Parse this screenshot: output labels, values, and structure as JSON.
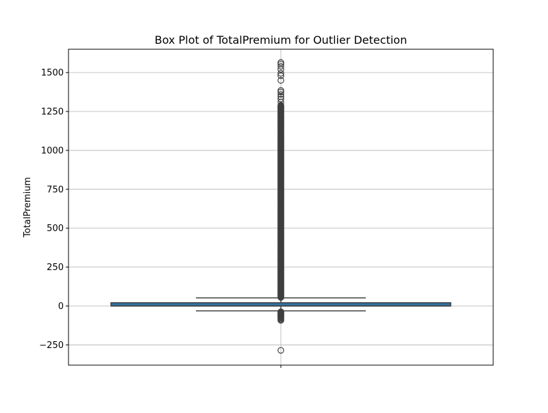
{
  "chart_data": {
    "type": "box",
    "title": "Box Plot of TotalPremium for Outlier Detection",
    "xlabel": "",
    "ylabel": "TotalPremium",
    "ylim": [
      -380,
      1650
    ],
    "yticks": [
      -250,
      0,
      250,
      500,
      750,
      1000,
      1250,
      1500
    ],
    "ytick_labels": [
      "−250",
      "0",
      "250",
      "500",
      "750",
      "1000",
      "1250",
      "1500"
    ],
    "grid": true,
    "box": {
      "q1": 0,
      "median": 0,
      "q3": 21,
      "whisker_low": -31,
      "whisker_high": 52,
      "fill_color": "#3274a1",
      "edge_color": "#3f3f3f"
    },
    "outliers": [
      -285,
      -92,
      -86,
      -80,
      -75,
      -70,
      -66,
      -62,
      -58,
      -55,
      -52,
      -48,
      -44,
      -40,
      -37,
      1450,
      1480,
      1495,
      1520,
      1540,
      1555,
      1565,
      1310,
      1330,
      1345,
      1360,
      1375,
      1385
    ],
    "dense_outlier_range": [
      55,
      1290
    ],
    "colors": {
      "grid": "#b0b0b0",
      "outlier_edge": "#3f3f3f",
      "axes": "#000000"
    }
  }
}
